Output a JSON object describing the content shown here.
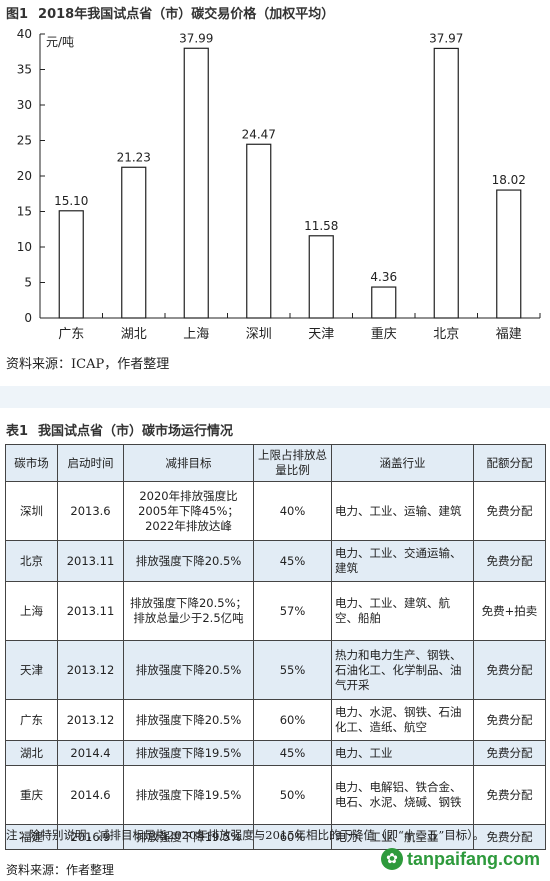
{
  "figure": {
    "label": "图1",
    "title": "2018年我国试点省（市）碳交易价格（加权平均）",
    "source": "资料来源：ICAP，作者整理"
  },
  "chart_data": {
    "type": "bar",
    "unit": "元/吨",
    "categories": [
      "广东",
      "湖北",
      "上海",
      "深圳",
      "天津",
      "重庆",
      "北京",
      "福建"
    ],
    "values": [
      15.1,
      21.23,
      37.99,
      24.47,
      11.58,
      4.36,
      37.97,
      18.02
    ],
    "value_labels": [
      "15.10",
      "21.23",
      "37.99",
      "24.47",
      "11.58",
      "4.36",
      "37.97",
      "18.02"
    ],
    "ylim": [
      0,
      40
    ],
    "yticks": [
      0,
      5,
      10,
      15,
      20,
      25,
      30,
      35,
      40
    ],
    "grid": false,
    "bar_color": "#ffffff"
  },
  "table": {
    "label": "表1",
    "title": "我国试点省（市）碳市场运行情况",
    "headers": [
      "碳市场",
      "启动时间",
      "减排目标",
      "上限占排放总量比例",
      "涵盖行业",
      "配额分配"
    ],
    "rows": [
      [
        "深圳",
        "2013.6",
        "2020年排放强度比2005年下降45%；2022年排放达峰",
        "40%",
        "电力、工业、运输、建筑",
        "免费分配"
      ],
      [
        "北京",
        "2013.11",
        "排放强度下降20.5%",
        "45%",
        "电力、工业、交通运输、建筑",
        "免费分配"
      ],
      [
        "上海",
        "2013.11",
        "排放强度下降20.5%；排放总量少于2.5亿吨",
        "57%",
        "电力、工业、建筑、航空、船舶",
        "免费+拍卖"
      ],
      [
        "天津",
        "2013.12",
        "排放强度下降20.5%",
        "55%",
        "热力和电力生产、钢铁、石油化工、化学制品、油气开采",
        "免费分配"
      ],
      [
        "广东",
        "2013.12",
        "排放强度下降20.5%",
        "60%",
        "电力、水泥、钢铁、石油化工、造纸、航空",
        "免费分配"
      ],
      [
        "湖北",
        "2014.4",
        "排放强度下降19.5%",
        "45%",
        "电力、工业",
        "免费分配"
      ],
      [
        "重庆",
        "2014.6",
        "排放强度下降19.5%",
        "50%",
        "电力、电解铝、铁合金、电石、水泥、烧碱、钢铁",
        "免费分配"
      ],
      [
        "福建",
        "2016.9",
        "排放强度下降19.5%",
        "60%",
        "电力、工业、航空业",
        "免费分配"
      ]
    ],
    "note": "注：除特别说明，减排目标是指2020年排放强度与2015年相比的下降值（即“十三五”目标）。",
    "source": "资料来源：作者整理"
  },
  "watermark": {
    "icon": "tanpaifang-leaf-icon",
    "text": "tanpaifang.com",
    "color": "#2e9a3c"
  }
}
